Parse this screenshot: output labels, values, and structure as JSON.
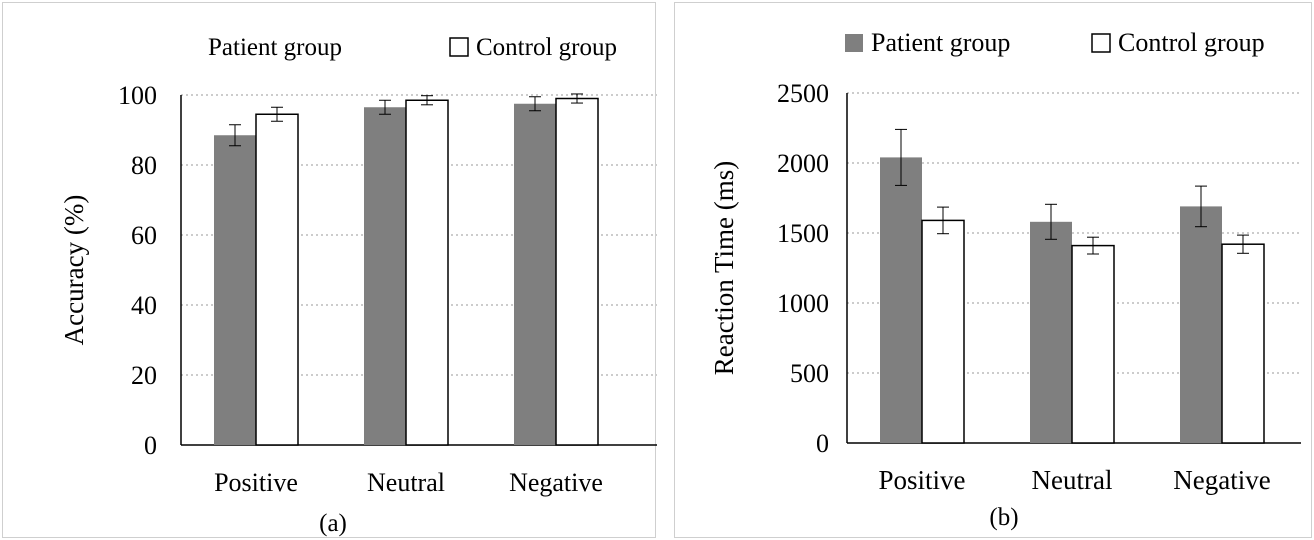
{
  "chart_data": [
    {
      "type": "bar",
      "panel_label": "(a)",
      "ylabel": "Accuracy (%)",
      "categories": [
        "Positive",
        "Neutral",
        "Negative"
      ],
      "yticks": [
        0,
        20,
        40,
        60,
        80,
        100
      ],
      "ylim": [
        0,
        100
      ],
      "grid": "horizontal dotted",
      "legend": "top",
      "series": [
        {
          "name": "Patient group",
          "color": "#7f7f7f",
          "values": [
            88.5,
            96.5,
            97.5
          ],
          "errors": [
            3,
            2,
            2
          ]
        },
        {
          "name": "Control group",
          "color": "#ffffff",
          "values": [
            94.5,
            98.5,
            99
          ],
          "errors": [
            2,
            1.3,
            1.3
          ]
        }
      ]
    },
    {
      "type": "bar",
      "panel_label": "(b)",
      "ylabel": "Reaction Time (ms)",
      "categories": [
        "Positive",
        "Neutral",
        "Negative"
      ],
      "yticks": [
        0,
        500,
        1000,
        1500,
        2000,
        2500
      ],
      "ylim": [
        0,
        2500
      ],
      "grid": "horizontal dotted",
      "legend": "top",
      "series": [
        {
          "name": "Patient group",
          "color": "#7f7f7f",
          "values": [
            2040,
            1580,
            1690
          ],
          "errors": [
            200,
            125,
            145
          ]
        },
        {
          "name": "Control group",
          "color": "#ffffff",
          "values": [
            1590,
            1410,
            1420
          ],
          "errors": [
            95,
            60,
            65
          ]
        }
      ]
    }
  ]
}
